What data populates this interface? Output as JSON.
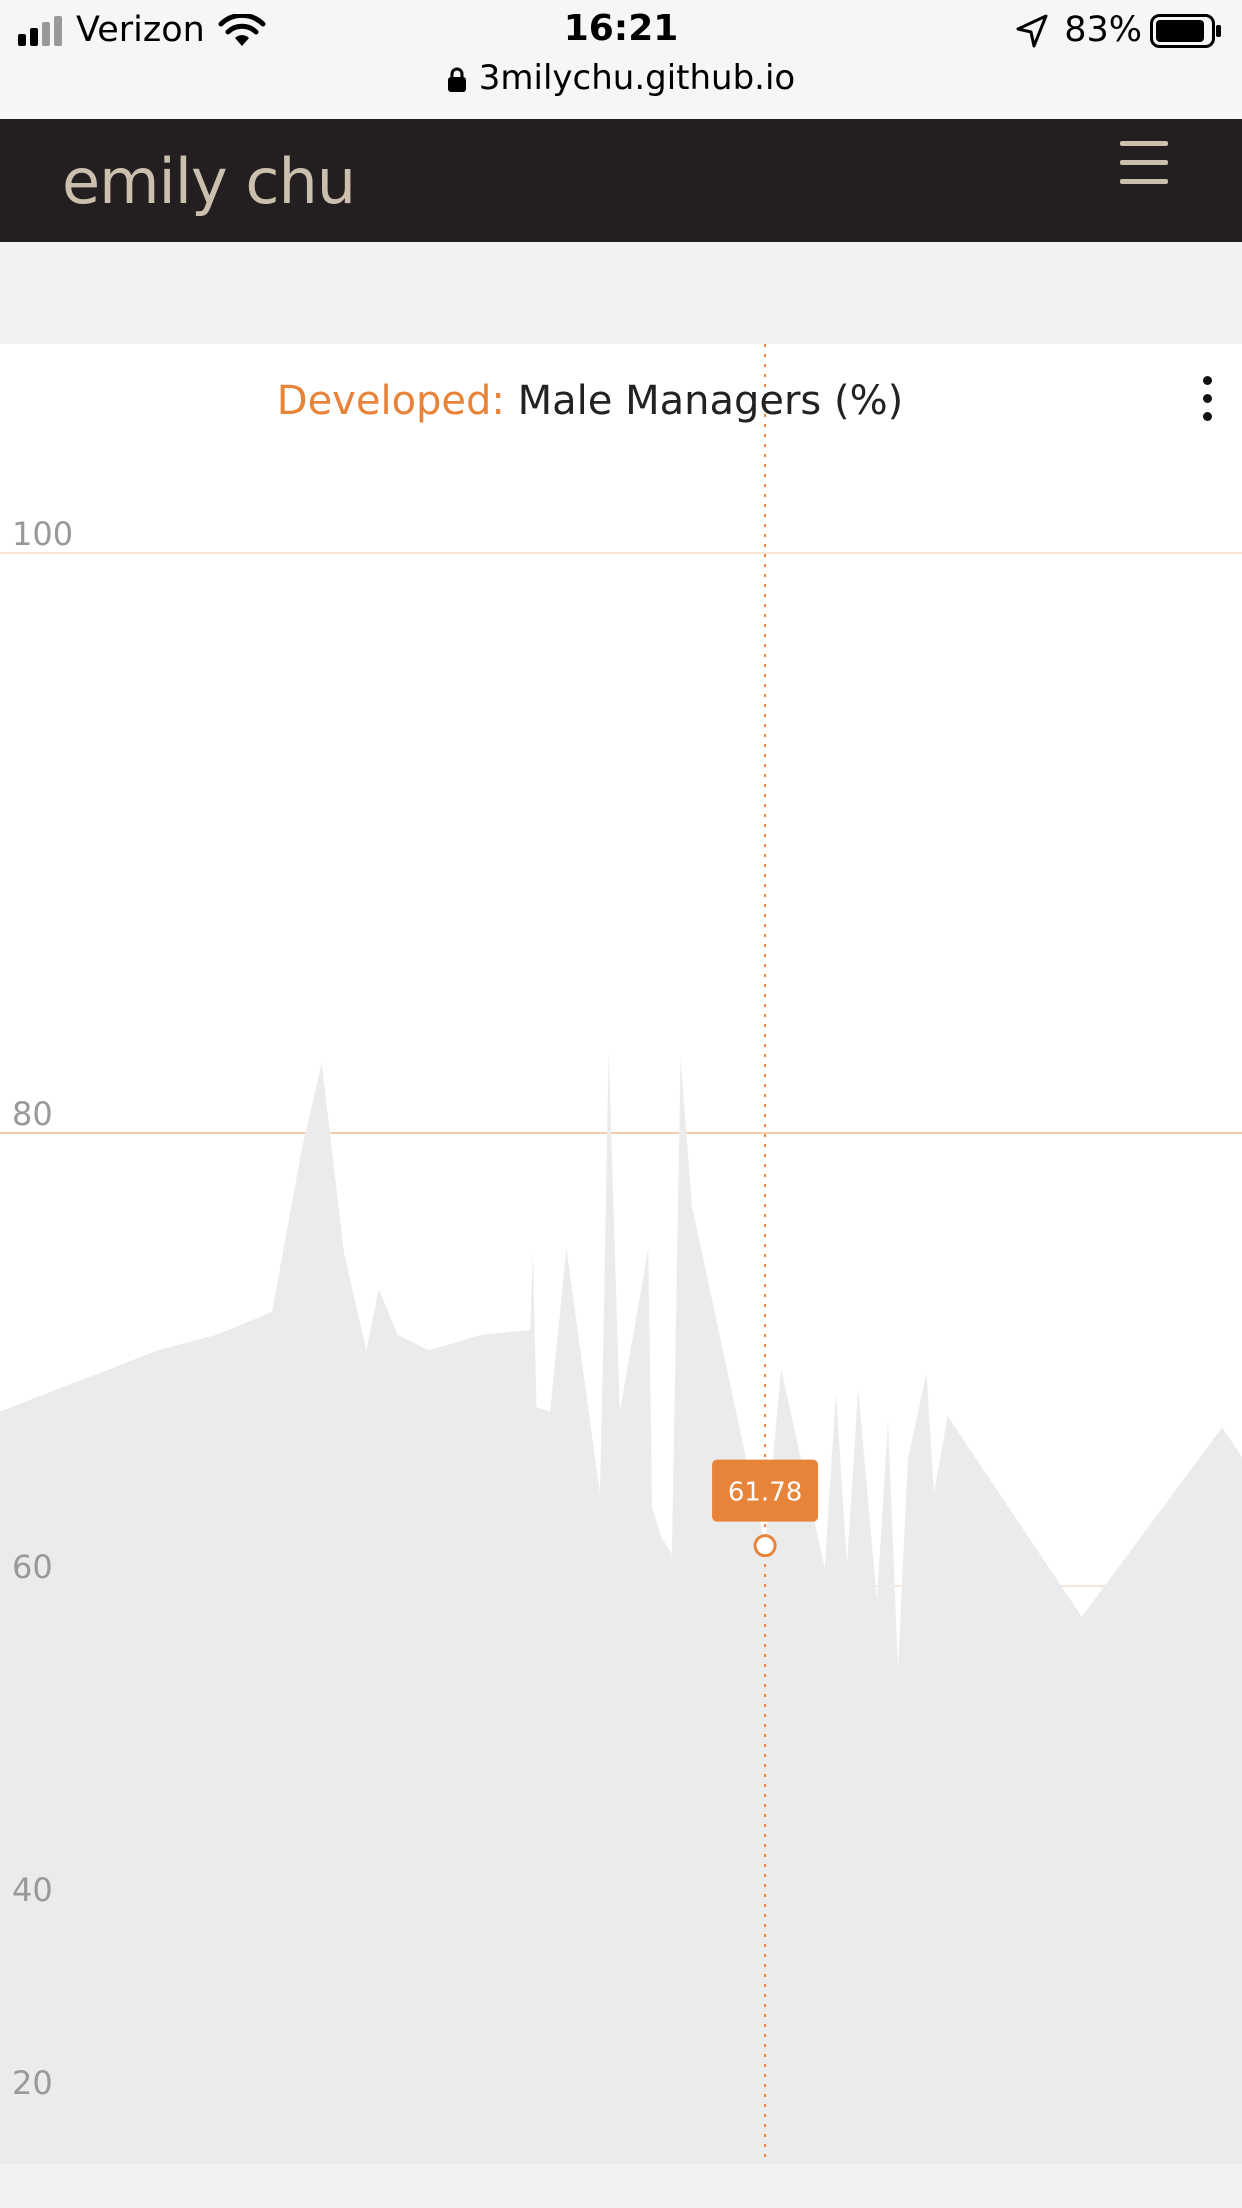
{
  "status_bar": {
    "carrier": "Verizon",
    "time": "16:21",
    "battery": "83%",
    "url": "3milychu.github.io"
  },
  "nav": {
    "brand": "emily chu"
  },
  "colors": {
    "accent": "#e8833a",
    "area_fill": "#ebebeb",
    "nav_bg": "#231f20",
    "brand_text": "#cbbfae"
  },
  "chart_data": {
    "type": "area",
    "title_prefix": "Developed:",
    "title": "Male Managers (%)",
    "yticks": [
      "100",
      "80",
      "60",
      "40",
      "20"
    ],
    "ylim": [
      20,
      100
    ],
    "tooltip_value": "61.78",
    "points": [
      [
        0,
        67.7
      ],
      [
        4.2,
        68.6
      ],
      [
        8.5,
        69.5
      ],
      [
        12.7,
        70.4
      ],
      [
        17.5,
        71.1
      ],
      [
        21.9,
        72.1
      ],
      [
        24.3,
        79.3
      ],
      [
        25.9,
        82.4
      ],
      [
        27.7,
        74.7
      ],
      [
        29.5,
        70.4
      ],
      [
        30.5,
        73.1
      ],
      [
        32.0,
        71.1
      ],
      [
        34.5,
        70.4
      ],
      [
        38.8,
        71.1
      ],
      [
        42.7,
        71.3
      ],
      [
        42.9,
        74.7
      ],
      [
        43.2,
        67.9
      ],
      [
        44.3,
        67.7
      ],
      [
        45.6,
        74.9
      ],
      [
        48.3,
        64.1
      ],
      [
        48.6,
        71.3
      ],
      [
        49.0,
        82.9
      ],
      [
        49.9,
        67.7
      ],
      [
        52.2,
        74.9
      ],
      [
        52.5,
        63.5
      ],
      [
        53.2,
        62.2
      ],
      [
        54.1,
        61.4
      ],
      [
        54.8,
        82.6
      ],
      [
        55.7,
        76.8
      ],
      [
        60.0,
        65.8
      ],
      [
        61.6,
        61.8
      ],
      [
        62.9,
        69.6
      ],
      [
        66.4,
        60.8
      ],
      [
        67.3,
        68.5
      ],
      [
        68.2,
        61.0
      ],
      [
        69.1,
        68.7
      ],
      [
        70.6,
        59.1
      ],
      [
        71.5,
        67.3
      ],
      [
        72.3,
        54.9
      ],
      [
        73.1,
        65.6
      ],
      [
        74.6,
        69.4
      ],
      [
        75.2,
        64.1
      ],
      [
        76.3,
        67.5
      ],
      [
        87.1,
        58.1
      ],
      [
        98.4,
        67.0
      ],
      [
        100,
        65.7
      ]
    ],
    "cursor_x": 61.6
  }
}
